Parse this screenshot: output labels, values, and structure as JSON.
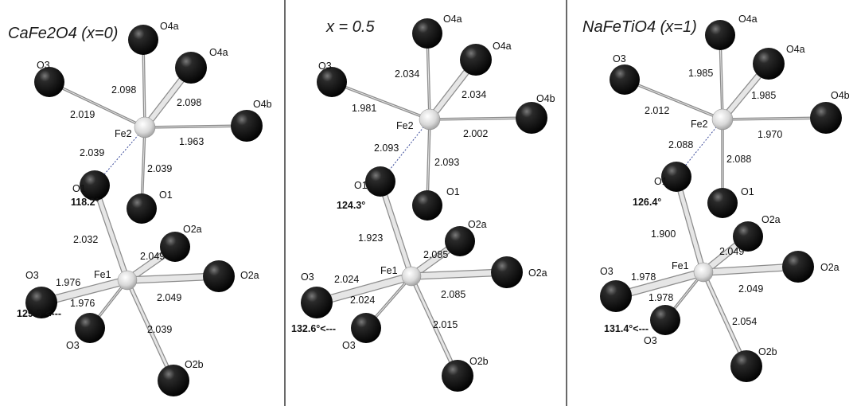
{
  "panels": [
    {
      "title": "CaFe2O4 (x=0)",
      "atoms": {
        "O4a_top": "O4a",
        "O4a_right": "O4a",
        "O3_top": "O3",
        "O4b": "O4b",
        "Fe2": "Fe2",
        "O1_left": "O1",
        "O1_right": "O1",
        "O2a_top": "O2a",
        "O2a_right": "O2a",
        "O3_left": "O3",
        "Fe1": "Fe1",
        "O3_bottom": "O3",
        "O2b": "O2b"
      },
      "bonds": {
        "fe2_o4a_top": "2.098",
        "fe2_o4a_right": "2.098",
        "fe2_o3": "2.019",
        "fe2_o4b": "1.963",
        "fe2_o1_left": "2.039",
        "fe2_o1_right": "2.039",
        "fe1_o1": "2.032",
        "fe1_o2a_top": "2.049",
        "fe1_o2a_right": "2.049",
        "fe1_o3_left": "1.976",
        "fe1_o3_bottom": "1.976",
        "fe1_o2b": "2.039"
      },
      "angles": {
        "o1": "118.2°",
        "o3": "129.5°<---"
      }
    },
    {
      "title": "x = 0.5",
      "atoms": {
        "O4a_top": "O4a",
        "O4a_right": "O4a",
        "O3_top": "O3",
        "O4b": "O4b",
        "Fe2": "Fe2",
        "O1_left": "O1",
        "O1_right": "O1",
        "O2a_top": "O2a",
        "O2a_right": "O2a",
        "O3_left": "O3",
        "Fe1": "Fe1",
        "O3_bottom": "O3",
        "O2b": "O2b"
      },
      "bonds": {
        "fe2_o4a_top": "2.034",
        "fe2_o4a_right": "2.034",
        "fe2_o3": "1.981",
        "fe2_o4b": "2.002",
        "fe2_o1_left": "2.093",
        "fe2_o1_right": "2.093",
        "fe1_o1": "1.923",
        "fe1_o2a_top": "2.085",
        "fe1_o2a_right": "2.085",
        "fe1_o3_left": "2.024",
        "fe1_o3_bottom": "2.024",
        "fe1_o2b": "2.015"
      },
      "angles": {
        "o1": "124.3°",
        "o3": "132.6°<---"
      }
    },
    {
      "title": "NaFeTiO4 (x=1)",
      "atoms": {
        "O4a_top": "O4a",
        "O4a_right": "O4a",
        "O3_top": "O3",
        "O4b": "O4b",
        "Fe2": "Fe2",
        "O1_left": "O1",
        "O1_right": "O1",
        "O2a_top": "O2a",
        "O2a_right": "O2a",
        "O3_left": "O3",
        "Fe1": "Fe1",
        "O3_bottom": "O3",
        "O2b": "O2b"
      },
      "bonds": {
        "fe2_o4a_top": "1.985",
        "fe2_o4a_right": "1.985",
        "fe2_o3": "2.012",
        "fe2_o4b": "1.970",
        "fe2_o1_left": "2.088",
        "fe2_o1_right": "2.088",
        "fe1_o1": "1.900",
        "fe1_o2a_top": "2.049",
        "fe1_o2a_right": "2.049",
        "fe1_o3_left": "1.978",
        "fe1_o3_bottom": "1.978",
        "fe1_o2b": "2.054"
      },
      "angles": {
        "o1": "126.4°",
        "o3": "131.4°<---"
      }
    }
  ]
}
